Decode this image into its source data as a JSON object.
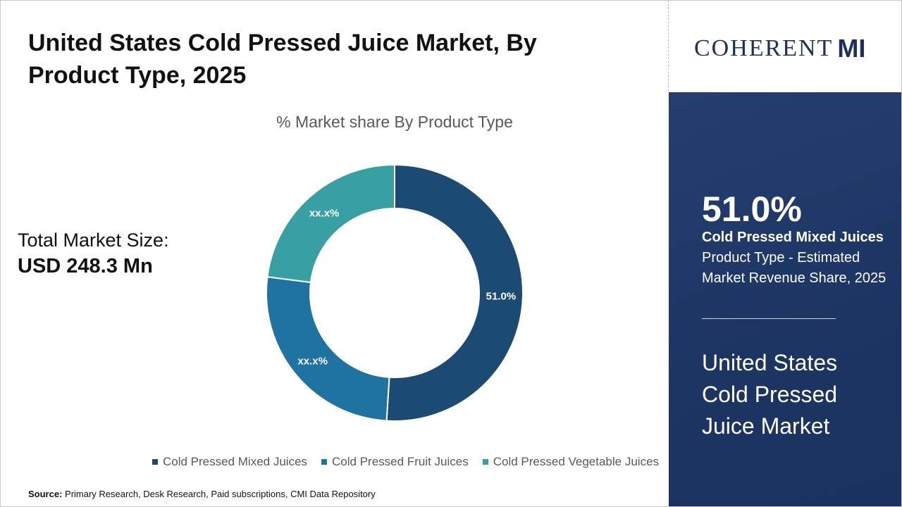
{
  "title": "United States Cold Pressed Juice Market, By Product Type, 2025",
  "total_market": {
    "label": "Total Market Size:",
    "value": "USD 248.3 Mn"
  },
  "source": {
    "label": "Source:",
    "text": "Primary Research, Desk Research, Paid subscriptions, CMI Data Repository"
  },
  "logo": {
    "text": "COHERENT",
    "suffix": "MI"
  },
  "panel": {
    "highlight": "51.0%",
    "segment": "Cold Pressed Mixed Juices",
    "description": "Product Type - Estimated Market Revenue Share, 2025",
    "market_name": "United States Cold Pressed Juice Market"
  },
  "chart_data": {
    "type": "pie",
    "variant": "donut",
    "title": "% Market share By Product Type",
    "categories": [
      "Cold Pressed Mixed Juices",
      "Cold Pressed Fruit Juices",
      "Cold Pressed Vegetable Juices"
    ],
    "values": [
      51.0,
      26.0,
      23.0
    ],
    "data_labels": [
      "51.0%",
      "xx.x%",
      "xx.x%"
    ],
    "colors": [
      "#1b4b73",
      "#1f73a0",
      "#36a0a3"
    ],
    "legend": "bottom"
  }
}
